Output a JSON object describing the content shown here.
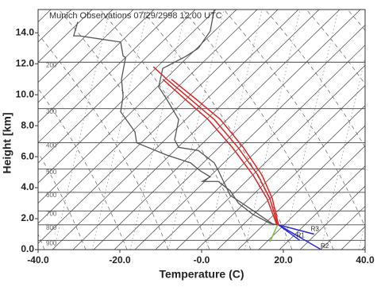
{
  "chart_data": {
    "type": "line",
    "title": "Munich Observations  07/29/2998 12:00 UTC",
    "x_label": "Temperature (C)",
    "y_label": "Height [km]",
    "xlim": [
      -40,
      40
    ],
    "ylim": [
      0,
      15.5
    ],
    "xticks": [
      {
        "value": -40,
        "label": "-40.0"
      },
      {
        "value": -20,
        "label": "-20.0"
      },
      {
        "value": 0,
        "label": "-0.0"
      },
      {
        "value": 20,
        "label": "20.0"
      },
      {
        "value": 40,
        "label": "40.0"
      }
    ],
    "yticks": [
      {
        "value": 0,
        "label": "0.0"
      },
      {
        "value": 2,
        "label": "2.0"
      },
      {
        "value": 4,
        "label": "4.0"
      },
      {
        "value": 6,
        "label": "6.0"
      },
      {
        "value": 8,
        "label": "8.0"
      },
      {
        "value": 10,
        "label": "10.0"
      },
      {
        "value": 12,
        "label": "12.0"
      },
      {
        "value": 14,
        "label": "14.0"
      }
    ],
    "isobars": [
      {
        "pressure": 200,
        "height": 12.1
      },
      {
        "pressure": 300,
        "height": 9.1
      },
      {
        "pressure": 400,
        "height": 6.9
      },
      {
        "pressure": 500,
        "height": 5.2
      },
      {
        "pressure": 600,
        "height": 3.7
      },
      {
        "pressure": 700,
        "height": 2.5
      },
      {
        "pressure": 800,
        "height": 1.6
      },
      {
        "pressure": 900,
        "height": 0.6
      }
    ],
    "series": [
      {
        "color": "#555555",
        "x": [
          -30.3,
          -31.3,
          -29.9,
          -19.8,
          -19.2,
          -18.6,
          -19.6,
          -19.2,
          -19.8,
          -16.3,
          -15.9,
          -8.5,
          -2.7,
          -0.4,
          2.1,
          0.2,
          4.1,
          7.0,
          9.0,
          12.4,
          16.7,
          18.6
        ],
        "values": [
          14.7,
          13.8,
          13.8,
          13.4,
          12.5,
          12.4,
          11.0,
          9.9,
          8.9,
          7.6,
          6.9,
          6.1,
          5.6,
          5.1,
          4.7,
          4.4,
          4.4,
          3.8,
          3.0,
          2.3,
          1.7,
          1.6
        ]
      },
      {
        "color": "#555555",
        "x": [
          3.1,
          2.1,
          -0.8,
          -3.7,
          -9.5,
          -10.5,
          -8.5,
          -5.6,
          -6.6,
          -5.6,
          -0.8,
          3.1,
          4.1,
          5.0,
          7.0,
          9.9,
          13.8,
          17.7
        ],
        "values": [
          15.5,
          14.1,
          13.0,
          12.5,
          11.7,
          10.5,
          9.7,
          8.4,
          7.1,
          6.6,
          6.4,
          5.6,
          5.1,
          4.6,
          3.5,
          3.0,
          2.3,
          1.6
        ]
      },
      {
        "color": "#d42a2a",
        "x": [
          18.6,
          16.7,
          13.8,
          8.9,
          3.1,
          -2.7,
          -8.5,
          -11.8
        ],
        "values": [
          1.6,
          3.3,
          4.8,
          6.6,
          8.4,
          9.7,
          11.0,
          11.8
        ]
      },
      {
        "color": "#d42a2a",
        "x": [
          18.4,
          16.0,
          12.6,
          7.5,
          1.6,
          -4.0,
          -9.5
        ],
        "values": [
          1.6,
          3.3,
          4.8,
          6.6,
          8.4,
          9.7,
          11.0
        ]
      },
      {
        "color": "#d42a2a",
        "x": [
          18.8,
          17.3,
          14.8,
          10.2,
          4.6,
          -1.3,
          -7.4
        ],
        "values": [
          1.6,
          3.3,
          4.8,
          6.6,
          8.4,
          9.7,
          11.0
        ]
      },
      {
        "color": "#2a2ad4",
        "name": "R1",
        "x": [
          18.8,
          24.0
        ],
        "values": [
          1.6,
          0.6
        ]
      },
      {
        "color": "#2a2ad4",
        "name": "R2",
        "x": [
          18.8,
          29.9
        ],
        "values": [
          1.6,
          -0.1
        ]
      },
      {
        "color": "#2a2ad4",
        "name": "R3",
        "x": [
          18.8,
          27.5
        ],
        "values": [
          1.6,
          1.0
        ]
      },
      {
        "color": "#7ac23a",
        "x": [
          18.6,
          16.7
        ],
        "values": [
          1.6,
          0.5
        ]
      }
    ]
  }
}
